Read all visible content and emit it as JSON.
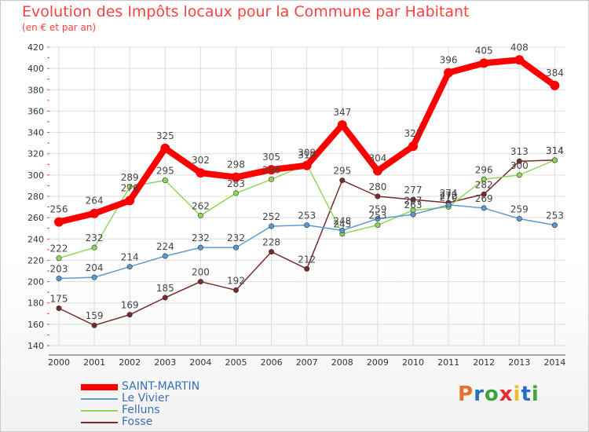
{
  "header": {
    "title": "Evolution des Impôts locaux pour la Commune par Habitant",
    "subtitle": "(en € et par an)"
  },
  "logo": {
    "text": "Proxiti",
    "letters": [
      "P",
      "r",
      "o",
      "x",
      "i",
      "t",
      "i"
    ],
    "colors": [
      "#e8702a",
      "#2a6fbf",
      "#3aa53a",
      "#e82a2a",
      "#e8c02a",
      "#2a6fbf",
      "#3aa53a"
    ]
  },
  "chart_data": {
    "type": "line",
    "x": [
      "2000",
      "2001",
      "2002",
      "2003",
      "2004",
      "2005",
      "2006",
      "2007",
      "2008",
      "2009",
      "2010",
      "2011",
      "2012",
      "2013",
      "2014"
    ],
    "ylim": [
      140,
      420
    ],
    "yticks": [
      "140",
      "160",
      "180",
      "200",
      "220",
      "240",
      "260",
      "280",
      "300",
      "320",
      "340",
      "360",
      "380",
      "400",
      "420"
    ],
    "grid": true,
    "legend_position": "bottom-left",
    "series": [
      {
        "name": "SAINT-MARTIN",
        "color": "#ff0000",
        "values": [
          256,
          264,
          276,
          325,
          302,
          298,
          305,
          309,
          347,
          304,
          327,
          396,
          405,
          408,
          384
        ],
        "labels": [
          "256",
          "264",
          "276",
          "325",
          "302",
          "298",
          "305",
          "309",
          "347",
          "304",
          "327",
          "396",
          "405",
          "408",
          "384"
        ]
      },
      {
        "name": "Le Vivier",
        "color": "#5b9bd5",
        "values": [
          203,
          204,
          214,
          224,
          232,
          232,
          252,
          253,
          248,
          259,
          263,
          272,
          269,
          259,
          253
        ],
        "labels": [
          "203",
          "204",
          "214",
          "224",
          "232",
          "232",
          "252",
          "253",
          "248",
          "259",
          "263",
          "272",
          "269",
          "259",
          "253"
        ]
      },
      {
        "name": "Felluns",
        "color": "#8fd65a",
        "values": [
          222,
          232,
          289,
          295,
          262,
          283,
          296,
          310,
          245,
          253,
          267,
          270,
          296,
          300,
          314
        ],
        "labels": [
          "222",
          "232",
          "289",
          "295",
          "262",
          "283",
          "296",
          "310",
          "245",
          "253",
          "267",
          "270",
          "296",
          "300",
          "314"
        ]
      },
      {
        "name": "Fosse",
        "color": "#7a2a2a",
        "values": [
          175,
          159,
          169,
          185,
          200,
          192,
          228,
          212,
          295,
          280,
          277,
          274,
          282,
          313,
          314
        ],
        "labels": [
          "175",
          "159",
          "169",
          "185",
          "200",
          "192",
          "228",
          "212",
          "295",
          "280",
          "277",
          "274",
          "282",
          "313",
          "314"
        ]
      }
    ]
  }
}
